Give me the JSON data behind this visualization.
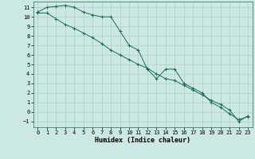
{
  "xlabel": "Humidex (Indice chaleur)",
  "background_color": "#cce8e4",
  "grid_color": "#b0ccc8",
  "line_color": "#1a6b5a",
  "xlim": [
    -0.5,
    23.5
  ],
  "ylim": [
    -1.6,
    11.6
  ],
  "xticks": [
    0,
    1,
    2,
    3,
    4,
    5,
    6,
    7,
    8,
    9,
    10,
    11,
    12,
    13,
    14,
    15,
    16,
    17,
    18,
    19,
    20,
    21,
    22,
    23
  ],
  "yticks": [
    -1,
    0,
    1,
    2,
    3,
    4,
    5,
    6,
    7,
    8,
    9,
    10,
    11
  ],
  "line1_x": [
    0,
    1,
    2,
    3,
    4,
    5,
    6,
    7,
    8,
    9,
    10,
    11,
    12,
    13,
    14,
    15,
    16,
    17,
    18,
    19,
    20,
    21,
    22,
    23
  ],
  "line1_y": [
    10.5,
    11.0,
    11.1,
    11.2,
    11.0,
    10.5,
    10.2,
    10.0,
    10.0,
    8.5,
    7.0,
    6.5,
    4.5,
    3.5,
    4.5,
    4.5,
    3.0,
    2.5,
    2.0,
    1.0,
    0.5,
    -0.2,
    -0.8,
    -0.5
  ],
  "line2_x": [
    0,
    1,
    2,
    3,
    4,
    5,
    6,
    7,
    8,
    9,
    10,
    11,
    12,
    13,
    14,
    15,
    16,
    17,
    18,
    19,
    20,
    21,
    22,
    23
  ],
  "line2_y": [
    10.4,
    10.4,
    9.8,
    9.2,
    8.8,
    8.3,
    7.8,
    7.2,
    6.5,
    6.0,
    5.5,
    5.0,
    4.6,
    4.0,
    3.5,
    3.3,
    2.8,
    2.3,
    1.8,
    1.2,
    0.8,
    0.2,
    -1.0,
    -0.4
  ],
  "tick_fontsize": 5.0,
  "xlabel_fontsize": 6.0,
  "lw": 0.7,
  "marker_size": 2.8,
  "marker_ew": 0.7
}
